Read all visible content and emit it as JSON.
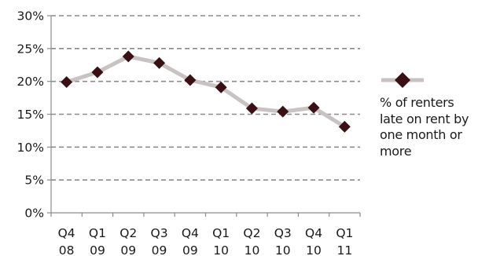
{
  "chart_data": {
    "type": "line",
    "title": "",
    "xlabel": "",
    "ylabel": "",
    "categories": [
      [
        "Q4",
        "08"
      ],
      [
        "Q1",
        "09"
      ],
      [
        "Q2",
        "09"
      ],
      [
        "Q3",
        "09"
      ],
      [
        "Q4",
        "09"
      ],
      [
        "Q1",
        "10"
      ],
      [
        "Q2",
        "10"
      ],
      [
        "Q3",
        "10"
      ],
      [
        "Q4",
        "10"
      ],
      [
        "Q1",
        "11"
      ]
    ],
    "series": [
      {
        "name": "% of renters late on rent by one month or more",
        "values": [
          19.9,
          21.4,
          23.8,
          22.8,
          20.2,
          19.1,
          15.9,
          15.4,
          16.0,
          13.1
        ]
      }
    ],
    "yticks": [
      "0%",
      "5%",
      "10%",
      "15%",
      "20%",
      "25%",
      "30%"
    ],
    "ylim": [
      0,
      30
    ],
    "grid": "horizontal-dashed",
    "legend_position": "right",
    "line_color": "#c8c2c2",
    "marker_color": "#3b1014",
    "marker": "diamond"
  }
}
